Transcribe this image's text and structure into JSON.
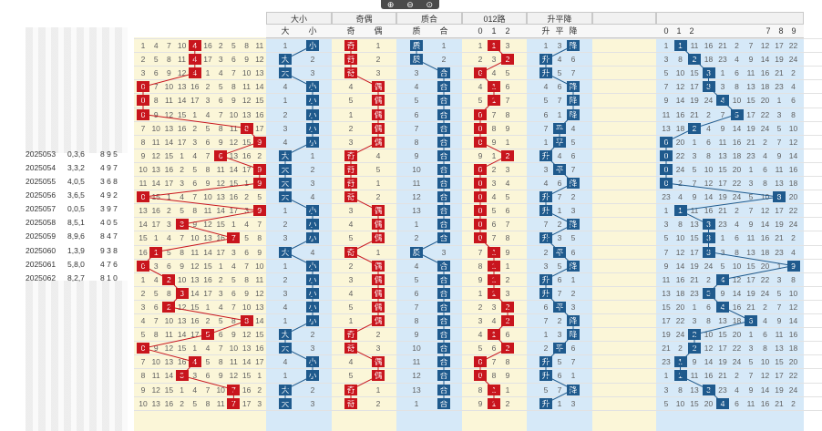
{
  "toolbar": {
    "zoom_in_icon": "zoom-in-icon",
    "zoom_out_icon": "zoom-out-icon",
    "zoom_reset_icon": "zoom-reset-icon"
  },
  "headers": {
    "size": "大小",
    "parity": "奇偶",
    "prime": "质合",
    "road": "012路",
    "trend": "升平降"
  },
  "subheaders": {
    "size": [
      "大",
      "小"
    ],
    "parity": [
      "奇",
      "偶"
    ],
    "prime": [
      "质",
      "合"
    ],
    "road": [
      "0",
      "1",
      "2"
    ],
    "trend": [
      "升",
      "平",
      "降"
    ],
    "span": [
      "0",
      "1",
      "2",
      "7",
      "8",
      "9"
    ]
  },
  "rows": [
    {
      "period": "2025053",
      "sum": "0,3,6",
      "number": "8 9 5"
    },
    {
      "period": "2025054",
      "sum": "3,3,2",
      "number": "4 9 7"
    },
    {
      "period": "2025055",
      "sum": "4,0,5",
      "number": "3 6 8"
    },
    {
      "period": "2025056",
      "sum": "3,6,5",
      "number": "4 9 2"
    },
    {
      "period": "2025057",
      "sum": "0,0,5",
      "number": "3 9 7"
    },
    {
      "period": "2025058",
      "sum": "8,5,1",
      "number": "4 0 5"
    },
    {
      "period": "2025059",
      "sum": "8,9,6",
      "number": "8 4 7"
    },
    {
      "period": "2025060",
      "sum": "1,3,9",
      "number": "9 3 8"
    },
    {
      "period": "2025061",
      "sum": "5,8,0",
      "number": "4 7 6"
    },
    {
      "period": "2025062",
      "sum": "8,2,7",
      "number": "8 1 0"
    }
  ],
  "main_red_positions": [
    4,
    4,
    4,
    0,
    0,
    0,
    8,
    9,
    6,
    9,
    9,
    0,
    9,
    3,
    7,
    1,
    0,
    2,
    3,
    2,
    8,
    5,
    0,
    4,
    3,
    7,
    7
  ],
  "size_marks": [
    "小",
    "大",
    "大",
    "小",
    "小",
    "小",
    "小",
    "小",
    "大",
    "大",
    "大",
    "大",
    "小",
    "小",
    "小",
    "大",
    "小",
    "小",
    "小",
    "小",
    "小",
    "大",
    "大",
    "小",
    "小",
    "大",
    "大"
  ],
  "parity_marks": [
    "奇",
    "奇",
    "奇",
    "偶",
    "偶",
    "偶",
    "偶",
    "偶",
    "奇",
    "奇",
    "奇",
    "奇",
    "偶",
    "偶",
    "偶",
    "奇",
    "偶",
    "偶",
    "偶",
    "偶",
    "偶",
    "奇",
    "奇",
    "偶",
    "偶",
    "奇",
    "奇"
  ],
  "prime_marks": [
    "质",
    "质",
    "合",
    "合",
    "合",
    "合",
    "合",
    "合",
    "合",
    "合",
    "合",
    "合",
    "合",
    "合",
    "合",
    "质",
    "合",
    "合",
    "合",
    "合",
    "合",
    "合",
    "合",
    "合",
    "合",
    "合",
    "合"
  ],
  "road_marks": [
    1,
    2,
    0,
    1,
    1,
    0,
    0,
    0,
    2,
    0,
    0,
    0,
    0,
    0,
    0,
    1,
    1,
    1,
    1,
    2,
    2,
    1,
    2,
    0,
    0,
    1,
    1
  ],
  "trend_marks": [
    "降",
    "升",
    "升",
    "降",
    "降",
    "降",
    "平",
    "平",
    "升",
    "平",
    "降",
    "升",
    "升",
    "降",
    "升",
    "平",
    "降",
    "升",
    "升",
    "平",
    "降",
    "降",
    "平",
    "升",
    "升",
    "降",
    "升"
  ],
  "span_marks": [
    1,
    2,
    3,
    3,
    4,
    5,
    2,
    0,
    0,
    0,
    0,
    8,
    1,
    3,
    3,
    3,
    9,
    4,
    3,
    4,
    6,
    2,
    2,
    1,
    1,
    3,
    4
  ],
  "span_columns": [
    "0",
    "1",
    "2",
    "7",
    "8",
    "9"
  ]
}
